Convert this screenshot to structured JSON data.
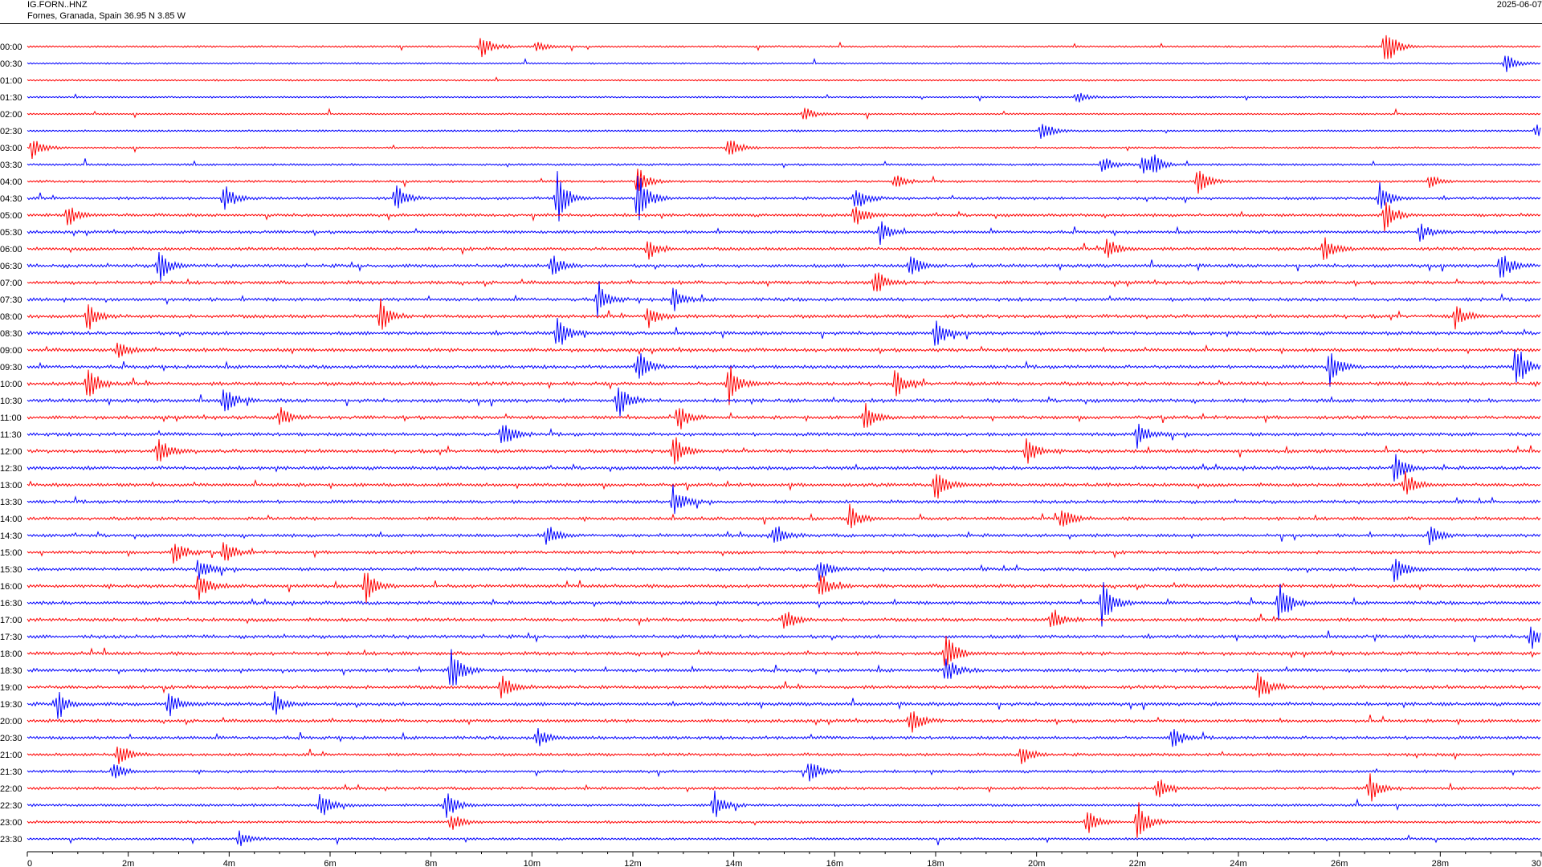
{
  "header": {
    "station": "IG.FORN..HNZ",
    "location": "Fornes, Granada, Spain  36.95 N 3.85 W",
    "date": "2025-06-07"
  },
  "colors": {
    "odd": "#ff0000",
    "even": "#0000ff",
    "axis": "#000000"
  },
  "chart_data": {
    "type": "line",
    "title": "",
    "xlabel": "",
    "ylabel": "",
    "xlim": [
      0,
      30
    ],
    "x_unit": "minutes",
    "x_ticks": [
      "0",
      "2m",
      "4m",
      "6m",
      "8m",
      "10m",
      "12m",
      "14m",
      "16m",
      "18m",
      "20m",
      "22m",
      "24m",
      "26m",
      "28m",
      "30"
    ],
    "row_labels": [
      "00:00",
      "00:30",
      "01:00",
      "01:30",
      "02:00",
      "02:30",
      "03:00",
      "03:30",
      "04:00",
      "04:30",
      "05:00",
      "05:30",
      "06:00",
      "06:30",
      "07:00",
      "07:30",
      "08:00",
      "08:30",
      "09:00",
      "09:30",
      "10:00",
      "10:30",
      "11:00",
      "11:30",
      "12:00",
      "12:30",
      "13:00",
      "13:30",
      "14:00",
      "14:30",
      "15:00",
      "15:30",
      "16:00",
      "16:30",
      "17:00",
      "17:30",
      "18:00",
      "18:30",
      "19:00",
      "19:30",
      "20:00",
      "20:30",
      "21:00",
      "21:30",
      "22:00",
      "22:30",
      "23:00",
      "23:30"
    ],
    "row_color_pattern": [
      "#ff0000",
      "#0000ff"
    ],
    "activity_profile": [
      0.3,
      0.2,
      0.2,
      0.2,
      0.2,
      0.3,
      0.3,
      0.4,
      0.5,
      0.7,
      0.8,
      0.8,
      0.9,
      1.0,
      1.0,
      1.0,
      1.0,
      1.0,
      1.0,
      1.0,
      1.1,
      1.1,
      1.0,
      1.0,
      1.0,
      1.0,
      1.0,
      0.9,
      0.9,
      0.9,
      0.9,
      0.9,
      1.0,
      1.0,
      1.0,
      1.0,
      1.0,
      1.0,
      1.0,
      1.0,
      0.9,
      0.9,
      0.8,
      0.7,
      0.7,
      0.6,
      0.6,
      0.5
    ],
    "events": [
      {
        "row": 0,
        "minute": 9.0,
        "amp": 1.0
      },
      {
        "row": 0,
        "minute": 10.1,
        "amp": 0.4
      },
      {
        "row": 0,
        "minute": 26.9,
        "amp": 1.6
      },
      {
        "row": 1,
        "minute": 29.3,
        "amp": 0.7
      },
      {
        "row": 3,
        "minute": 20.8,
        "amp": 0.4
      },
      {
        "row": 4,
        "minute": 15.4,
        "amp": 0.5
      },
      {
        "row": 5,
        "minute": 20.1,
        "amp": 0.8
      },
      {
        "row": 5,
        "minute": 29.9,
        "amp": 0.5
      },
      {
        "row": 6,
        "minute": 0.1,
        "amp": 1.0
      },
      {
        "row": 6,
        "minute": 13.9,
        "amp": 0.9
      },
      {
        "row": 7,
        "minute": 21.3,
        "amp": 0.7
      },
      {
        "row": 7,
        "minute": 22.1,
        "amp": 0.8
      },
      {
        "row": 7,
        "minute": 22.3,
        "amp": 0.6
      },
      {
        "row": 8,
        "minute": 12.1,
        "amp": 1.1
      },
      {
        "row": 8,
        "minute": 17.2,
        "amp": 0.5
      },
      {
        "row": 8,
        "minute": 23.2,
        "amp": 1.0
      },
      {
        "row": 8,
        "minute": 27.8,
        "amp": 0.5
      },
      {
        "row": 9,
        "minute": 3.9,
        "amp": 1.0
      },
      {
        "row": 9,
        "minute": 7.3,
        "amp": 1.0
      },
      {
        "row": 9,
        "minute": 10.5,
        "amp": 2.0
      },
      {
        "row": 9,
        "minute": 12.1,
        "amp": 2.2
      },
      {
        "row": 9,
        "minute": 16.4,
        "amp": 1.0
      },
      {
        "row": 9,
        "minute": 26.8,
        "amp": 1.2
      },
      {
        "row": 10,
        "minute": 0.8,
        "amp": 0.8
      },
      {
        "row": 10,
        "minute": 16.4,
        "amp": 1.0
      },
      {
        "row": 10,
        "minute": 26.9,
        "amp": 1.3
      },
      {
        "row": 11,
        "minute": 16.9,
        "amp": 0.9
      },
      {
        "row": 11,
        "minute": 27.6,
        "amp": 0.7
      },
      {
        "row": 12,
        "minute": 12.3,
        "amp": 0.8
      },
      {
        "row": 12,
        "minute": 21.4,
        "amp": 0.9
      },
      {
        "row": 12,
        "minute": 25.7,
        "amp": 1.0
      },
      {
        "row": 13,
        "minute": 2.6,
        "amp": 1.3
      },
      {
        "row": 13,
        "minute": 10.4,
        "amp": 0.8
      },
      {
        "row": 13,
        "minute": 17.5,
        "amp": 1.0
      },
      {
        "row": 13,
        "minute": 29.2,
        "amp": 1.1
      },
      {
        "row": 14,
        "minute": 16.8,
        "amp": 1.0
      },
      {
        "row": 15,
        "minute": 11.3,
        "amp": 1.1
      },
      {
        "row": 15,
        "minute": 12.8,
        "amp": 0.9
      },
      {
        "row": 16,
        "minute": 1.2,
        "amp": 1.1
      },
      {
        "row": 16,
        "minute": 7.0,
        "amp": 1.2
      },
      {
        "row": 16,
        "minute": 12.3,
        "amp": 0.9
      },
      {
        "row": 16,
        "minute": 28.3,
        "amp": 1.0
      },
      {
        "row": 17,
        "minute": 10.5,
        "amp": 1.4
      },
      {
        "row": 17,
        "minute": 18.0,
        "amp": 1.1
      },
      {
        "row": 18,
        "minute": 1.8,
        "amp": 0.7
      },
      {
        "row": 19,
        "minute": 12.1,
        "amp": 1.2
      },
      {
        "row": 19,
        "minute": 25.8,
        "amp": 1.4
      },
      {
        "row": 19,
        "minute": 29.5,
        "amp": 1.8
      },
      {
        "row": 20,
        "minute": 1.2,
        "amp": 1.4
      },
      {
        "row": 20,
        "minute": 13.9,
        "amp": 1.5
      },
      {
        "row": 20,
        "minute": 17.2,
        "amp": 1.0
      },
      {
        "row": 21,
        "minute": 3.9,
        "amp": 1.1
      },
      {
        "row": 21,
        "minute": 11.7,
        "amp": 1.4
      },
      {
        "row": 22,
        "minute": 5.0,
        "amp": 0.8
      },
      {
        "row": 22,
        "minute": 12.9,
        "amp": 1.1
      },
      {
        "row": 22,
        "minute": 16.6,
        "amp": 1.1
      },
      {
        "row": 23,
        "minute": 9.4,
        "amp": 1.2
      },
      {
        "row": 23,
        "minute": 22.0,
        "amp": 1.0
      },
      {
        "row": 24,
        "minute": 2.6,
        "amp": 1.2
      },
      {
        "row": 24,
        "minute": 12.8,
        "amp": 1.5
      },
      {
        "row": 24,
        "minute": 19.8,
        "amp": 1.2
      },
      {
        "row": 25,
        "minute": 27.1,
        "amp": 1.1
      },
      {
        "row": 26,
        "minute": 18.0,
        "amp": 1.3
      },
      {
        "row": 26,
        "minute": 27.3,
        "amp": 1.1
      },
      {
        "row": 27,
        "minute": 12.8,
        "amp": 1.2
      },
      {
        "row": 28,
        "minute": 16.3,
        "amp": 1.0
      },
      {
        "row": 28,
        "minute": 20.5,
        "amp": 0.9
      },
      {
        "row": 29,
        "minute": 10.3,
        "amp": 0.9
      },
      {
        "row": 29,
        "minute": 14.8,
        "amp": 0.9
      },
      {
        "row": 29,
        "minute": 27.8,
        "amp": 0.8
      },
      {
        "row": 30,
        "minute": 2.9,
        "amp": 1.1
      },
      {
        "row": 30,
        "minute": 3.9,
        "amp": 0.9
      },
      {
        "row": 31,
        "minute": 3.4,
        "amp": 0.9
      },
      {
        "row": 31,
        "minute": 15.7,
        "amp": 0.9
      },
      {
        "row": 31,
        "minute": 27.1,
        "amp": 1.3
      },
      {
        "row": 32,
        "minute": 3.4,
        "amp": 1.0
      },
      {
        "row": 32,
        "minute": 6.7,
        "amp": 1.2
      },
      {
        "row": 32,
        "minute": 15.7,
        "amp": 1.0
      },
      {
        "row": 33,
        "minute": 21.3,
        "amp": 1.9
      },
      {
        "row": 33,
        "minute": 24.8,
        "amp": 1.7
      },
      {
        "row": 34,
        "minute": 15.0,
        "amp": 0.9
      },
      {
        "row": 34,
        "minute": 20.3,
        "amp": 0.9
      },
      {
        "row": 35,
        "minute": 29.8,
        "amp": 1.0
      },
      {
        "row": 36,
        "minute": 18.2,
        "amp": 1.6
      },
      {
        "row": 37,
        "minute": 8.4,
        "amp": 1.8
      },
      {
        "row": 37,
        "minute": 18.2,
        "amp": 1.0
      },
      {
        "row": 38,
        "minute": 9.4,
        "amp": 1.0
      },
      {
        "row": 38,
        "minute": 24.4,
        "amp": 1.4
      },
      {
        "row": 39,
        "minute": 0.6,
        "amp": 1.0
      },
      {
        "row": 39,
        "minute": 2.8,
        "amp": 1.1
      },
      {
        "row": 39,
        "minute": 4.9,
        "amp": 0.9
      },
      {
        "row": 40,
        "minute": 17.5,
        "amp": 1.0
      },
      {
        "row": 41,
        "minute": 10.1,
        "amp": 0.8
      },
      {
        "row": 41,
        "minute": 22.7,
        "amp": 0.8
      },
      {
        "row": 42,
        "minute": 1.8,
        "amp": 0.9
      },
      {
        "row": 42,
        "minute": 19.7,
        "amp": 0.8
      },
      {
        "row": 43,
        "minute": 1.7,
        "amp": 0.7
      },
      {
        "row": 43,
        "minute": 15.5,
        "amp": 0.9
      },
      {
        "row": 44,
        "minute": 22.4,
        "amp": 0.9
      },
      {
        "row": 44,
        "minute": 26.6,
        "amp": 1.1
      },
      {
        "row": 45,
        "minute": 5.8,
        "amp": 1.1
      },
      {
        "row": 45,
        "minute": 8.3,
        "amp": 1.2
      },
      {
        "row": 45,
        "minute": 13.6,
        "amp": 1.1
      },
      {
        "row": 46,
        "minute": 8.4,
        "amp": 0.7
      },
      {
        "row": 46,
        "minute": 21.0,
        "amp": 0.9
      },
      {
        "row": 46,
        "minute": 22.0,
        "amp": 1.6
      },
      {
        "row": 47,
        "minute": 4.2,
        "amp": 0.6
      }
    ]
  }
}
